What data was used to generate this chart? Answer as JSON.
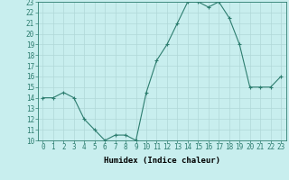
{
  "x": [
    0,
    1,
    2,
    3,
    4,
    5,
    6,
    7,
    8,
    9,
    10,
    11,
    12,
    13,
    14,
    15,
    16,
    17,
    18,
    19,
    20,
    21,
    22,
    23
  ],
  "y": [
    14,
    14,
    14.5,
    14,
    12,
    11,
    10,
    10.5,
    10.5,
    10,
    14.5,
    17.5,
    19,
    21,
    23,
    23,
    22.5,
    23,
    21.5,
    19,
    15,
    15,
    15,
    16
  ],
  "line_color": "#2d7d6f",
  "marker": "+",
  "marker_color": "#2d7d6f",
  "bg_color": "#c8eeee",
  "grid_color": "#b0d8d8",
  "xlabel": "Humidex (Indice chaleur)",
  "xlim": [
    -0.5,
    23.5
  ],
  "ylim": [
    10,
    23
  ],
  "xticks": [
    0,
    1,
    2,
    3,
    4,
    5,
    6,
    7,
    8,
    9,
    10,
    11,
    12,
    13,
    14,
    15,
    16,
    17,
    18,
    19,
    20,
    21,
    22,
    23
  ],
  "yticks": [
    10,
    11,
    12,
    13,
    14,
    15,
    16,
    17,
    18,
    19,
    20,
    21,
    22,
    23
  ],
  "tick_label_fontsize": 5.5,
  "xlabel_fontsize": 6.5,
  "line_width": 0.8,
  "marker_size": 3.5
}
